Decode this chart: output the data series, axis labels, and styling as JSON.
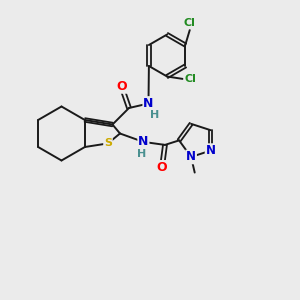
{
  "background_color": "#ebebeb",
  "bond_color": "#1a1a1a",
  "atom_colors": {
    "O": "#ff0000",
    "N": "#0000cc",
    "S": "#ccaa00",
    "Cl": "#228B22",
    "H": "#4a9090",
    "C": "#1a1a1a"
  }
}
